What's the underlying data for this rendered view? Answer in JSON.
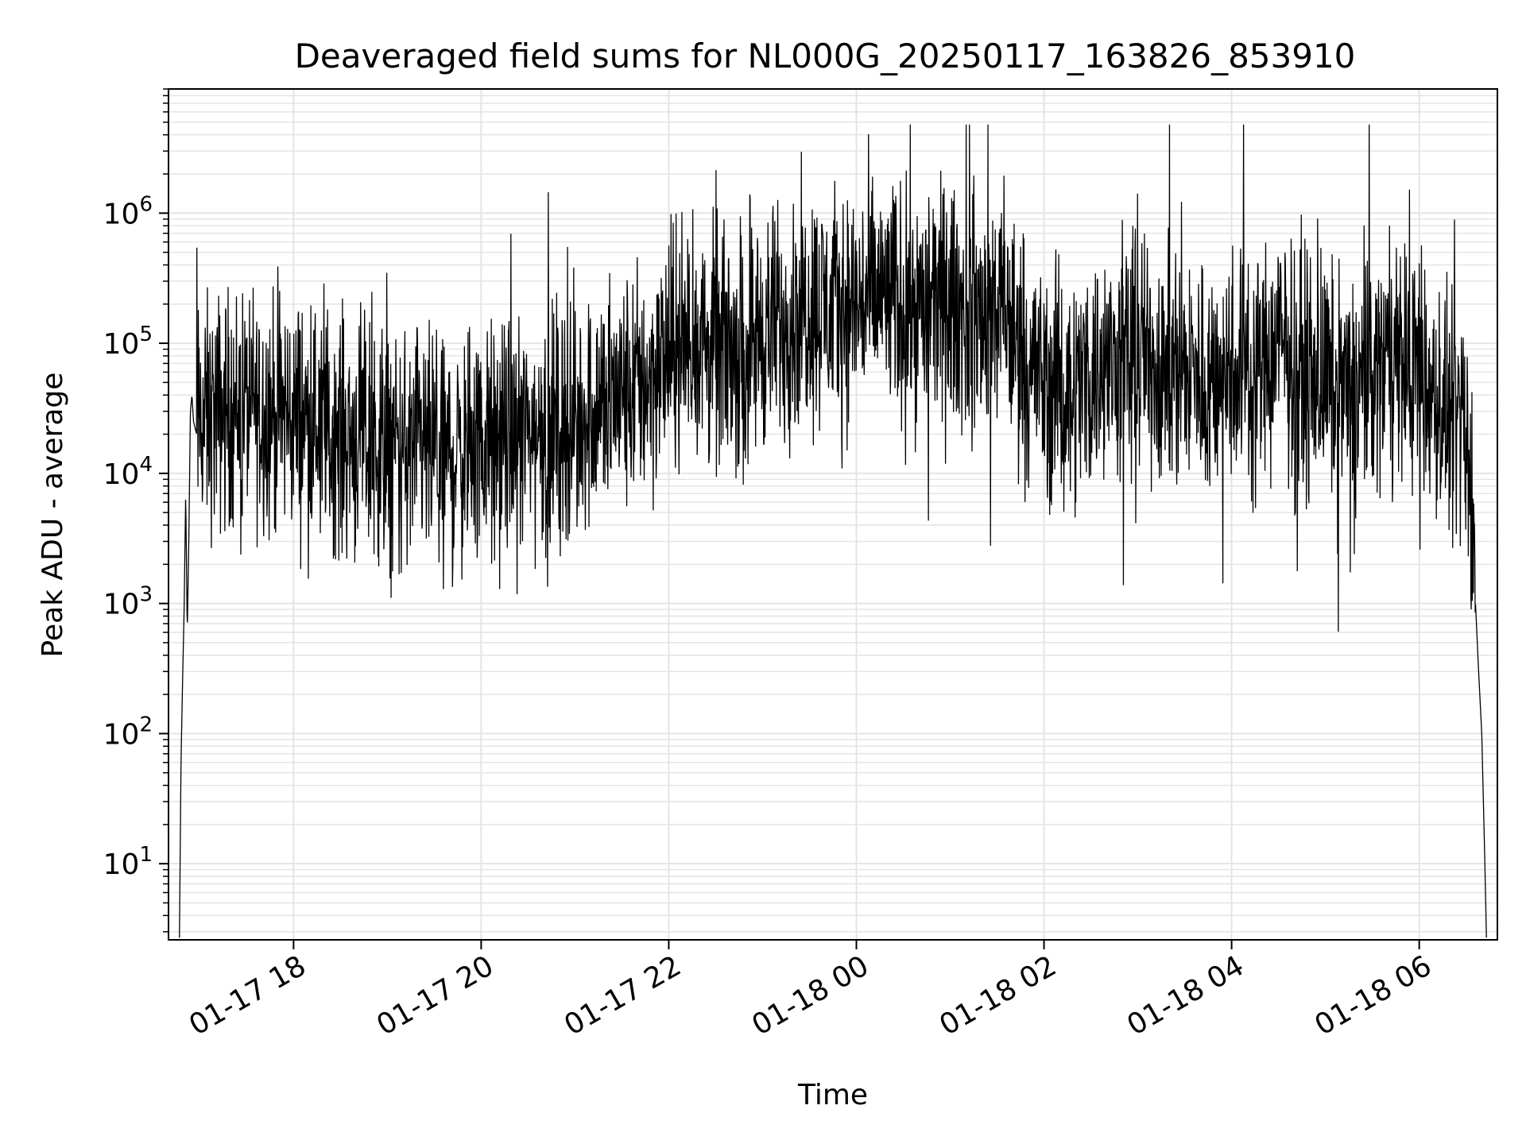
{
  "chart_data": {
    "type": "line",
    "title": "Deaveraged field sums for NL000G_20250117_163826_853910",
    "xlabel": "Time",
    "ylabel": "Peak ADU - average",
    "yscale": "log",
    "ylim": [
      2.6,
      9000000
    ],
    "xlim": [
      "2025-01-17 16:40",
      "2025-01-18 06:50"
    ],
    "grid": true,
    "line_color": "#000000",
    "x_ticks": [
      {
        "value": "2025-01-17 18:00",
        "label": "01-17 18"
      },
      {
        "value": "2025-01-17 20:00",
        "label": "01-17 20"
      },
      {
        "value": "2025-01-17 22:00",
        "label": "01-17 22"
      },
      {
        "value": "2025-01-18 00:00",
        "label": "01-18 00"
      },
      {
        "value": "2025-01-18 02:00",
        "label": "01-18 02"
      },
      {
        "value": "2025-01-18 04:00",
        "label": "01-18 04"
      },
      {
        "value": "2025-01-18 06:00",
        "label": "01-18 06"
      }
    ],
    "y_ticks": [
      {
        "value": 10,
        "base": "10",
        "exp": "1"
      },
      {
        "value": 100,
        "base": "10",
        "exp": "2"
      },
      {
        "value": 1000,
        "base": "10",
        "exp": "3"
      },
      {
        "value": 10000,
        "base": "10",
        "exp": "4"
      },
      {
        "value": 100000,
        "base": "10",
        "exp": "5"
      },
      {
        "value": 1000000,
        "base": "10",
        "exp": "6"
      }
    ],
    "series": [
      {
        "x": [
          "2025-01-17 16:47",
          "2025-01-17 16:48",
          "2025-01-17 16:49",
          "2025-01-17 16:50",
          "2025-01-17 16:51",
          "2025-01-17 16:52",
          "2025-01-17 16:53",
          "2025-01-17 16:54",
          "2025-01-17 16:55",
          "2025-01-17 16:56",
          "2025-01-17 16:58",
          "2025-01-17 17:00",
          "2025-01-17 17:15",
          "2025-01-17 17:30",
          "2025-01-17 17:45",
          "2025-01-17 18:00",
          "2025-01-17 18:15",
          "2025-01-17 18:30",
          "2025-01-17 18:45",
          "2025-01-17 19:00",
          "2025-01-17 19:15",
          "2025-01-17 19:30",
          "2025-01-17 19:45",
          "2025-01-17 20:00",
          "2025-01-17 20:15",
          "2025-01-17 20:30",
          "2025-01-17 20:45",
          "2025-01-17 21:00",
          "2025-01-17 21:15",
          "2025-01-17 21:30",
          "2025-01-17 21:45",
          "2025-01-17 22:00",
          "2025-01-17 22:15",
          "2025-01-17 22:30",
          "2025-01-17 22:45",
          "2025-01-17 23:00",
          "2025-01-17 23:15",
          "2025-01-17 23:30",
          "2025-01-17 23:45",
          "2025-01-18 00:00",
          "2025-01-18 00:15",
          "2025-01-18 00:30",
          "2025-01-18 00:45",
          "2025-01-18 01:00",
          "2025-01-18 01:15",
          "2025-01-18 01:30",
          "2025-01-18 01:45",
          "2025-01-18 02:00",
          "2025-01-18 02:15",
          "2025-01-18 02:30",
          "2025-01-18 02:45",
          "2025-01-18 03:00",
          "2025-01-18 03:15",
          "2025-01-18 03:30",
          "2025-01-18 03:45",
          "2025-01-18 04:00",
          "2025-01-18 04:15",
          "2025-01-18 04:30",
          "2025-01-18 04:45",
          "2025-01-18 05:00",
          "2025-01-18 05:15",
          "2025-01-18 05:30",
          "2025-01-18 05:45",
          "2025-01-18 06:00",
          "2025-01-18 06:15",
          "2025-01-18 06:25",
          "2025-01-18 06:30",
          "2025-01-18 06:33",
          "2025-01-18 06:36",
          "2025-01-18 06:38",
          "2025-01-18 06:40",
          "2025-01-18 06:42",
          "2025-01-18 06:43"
        ],
        "y": [
          2.7,
          60,
          250,
          900,
          7000,
          600,
          3000,
          30000,
          40000,
          25000,
          20000,
          25000,
          30000,
          35000,
          30000,
          28000,
          25000,
          20000,
          18000,
          15000,
          14000,
          14000,
          14000,
          16000,
          18000,
          20000,
          22000,
          25000,
          35000,
          40000,
          50000,
          80000,
          100000,
          90000,
          90000,
          120000,
          150000,
          200000,
          180000,
          200000,
          230000,
          200000,
          180000,
          200000,
          150000,
          180000,
          100000,
          50000,
          40000,
          60000,
          70000,
          80000,
          70000,
          60000,
          50000,
          70000,
          60000,
          100000,
          60000,
          50000,
          40000,
          60000,
          80000,
          50000,
          30000,
          20000,
          15000,
          10000,
          1000,
          300,
          100,
          10,
          2.7
        ]
      }
    ]
  }
}
